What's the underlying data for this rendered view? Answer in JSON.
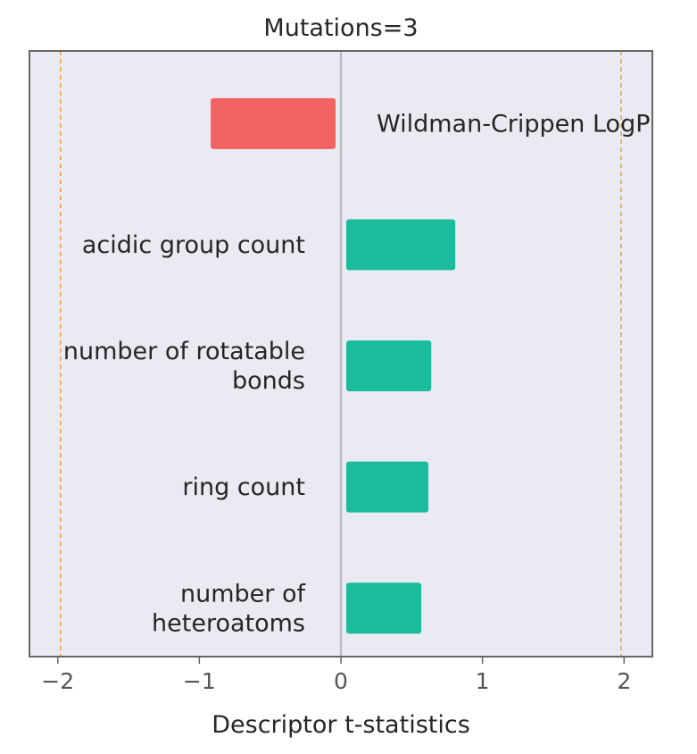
{
  "chart_data": {
    "type": "bar",
    "orientation": "horizontal",
    "title": "Mutations=3",
    "xlabel": "Descriptor t-statistics",
    "ylabel": "",
    "xlim": [
      -2.2,
      2.2
    ],
    "xticks": [
      -2,
      -1,
      0,
      1,
      2
    ],
    "xtick_labels": [
      "−2",
      "−1",
      "0",
      "1",
      "2"
    ],
    "threshold_lines": [
      -1.98,
      1.98
    ],
    "grid": false,
    "categories": [
      "Wildman-Crippen LogP",
      "acidic group count",
      "number of rotatable bonds",
      "ring count",
      "number of heteroatoms"
    ],
    "label_lines": [
      [
        "Wildman-Crippen LogP"
      ],
      [
        "acidic group count"
      ],
      [
        "number of rotatable",
        "bonds"
      ],
      [
        "ring count"
      ],
      [
        "number of",
        "heteroatoms"
      ]
    ],
    "values": [
      -0.92,
      0.77,
      0.6,
      0.58,
      0.53
    ],
    "colors": {
      "positive": "#1abc9c",
      "negative": "#f26262",
      "threshold": "#f0a030",
      "background": "#eaeaf2",
      "frame": "#666666",
      "zero_line": "#888888"
    }
  }
}
